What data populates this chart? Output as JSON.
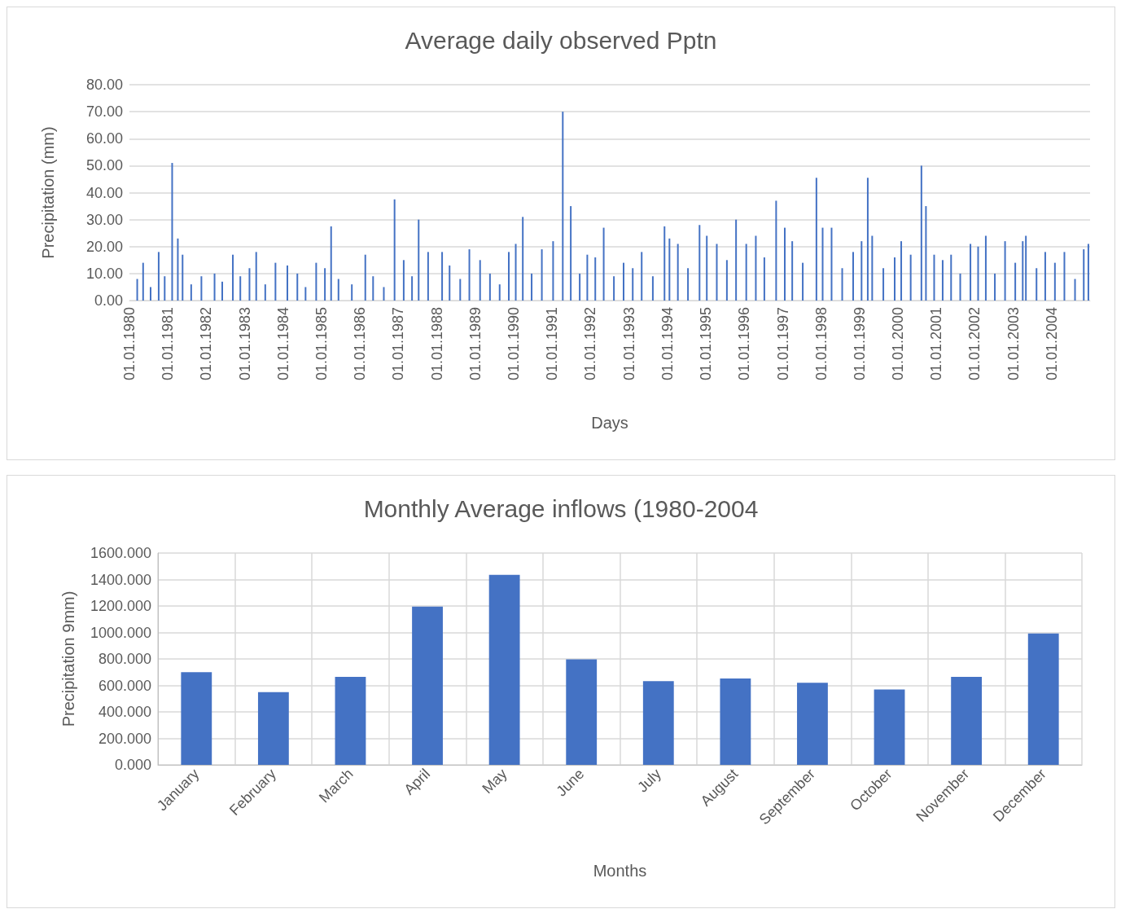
{
  "chart_data": [
    {
      "type": "bar",
      "title": "Average daily observed Pptn",
      "xlabel": "Days",
      "ylabel": "Precipitation (mm)",
      "grid": "y",
      "xlim": [
        "1980-01-01",
        "2004-12-31"
      ],
      "xticks": [
        {
          "value": "1980-01-01",
          "label": "01.01.1980"
        },
        {
          "value": "1981-01-01",
          "label": "01.01.1981"
        },
        {
          "value": "1982-01-01",
          "label": "01.01.1982"
        },
        {
          "value": "1983-01-01",
          "label": "01.01.1983"
        },
        {
          "value": "1984-01-01",
          "label": "01.01.1984"
        },
        {
          "value": "1985-01-01",
          "label": "01.01.1985"
        },
        {
          "value": "1986-01-01",
          "label": "01.01.1986"
        },
        {
          "value": "1987-01-01",
          "label": "01.01.1987"
        },
        {
          "value": "1988-01-01",
          "label": "01.01.1988"
        },
        {
          "value": "1989-01-01",
          "label": "01.01.1989"
        },
        {
          "value": "1990-01-01",
          "label": "01.01.1990"
        },
        {
          "value": "1991-01-01",
          "label": "01.01.1991"
        },
        {
          "value": "1992-01-01",
          "label": "01.01.1992"
        },
        {
          "value": "1993-01-01",
          "label": "01.01.1993"
        },
        {
          "value": "1994-01-01",
          "label": "01.01.1994"
        },
        {
          "value": "1995-01-01",
          "label": "01.01.1995"
        },
        {
          "value": "1996-01-01",
          "label": "01.01.1996"
        },
        {
          "value": "1997-01-01",
          "label": "01.01.1997"
        },
        {
          "value": "1998-01-01",
          "label": "01.01.1998"
        },
        {
          "value": "1999-01-01",
          "label": "01.01.1999"
        },
        {
          "value": "2000-01-01",
          "label": "01.01.2000"
        },
        {
          "value": "2001-01-01",
          "label": "01.01.2001"
        },
        {
          "value": "2002-01-01",
          "label": "01.01.2002"
        },
        {
          "value": "2003-01-01",
          "label": "01.01.2003"
        },
        {
          "value": "2004-01-01",
          "label": "01.01.2004"
        }
      ],
      "ylim": [
        0,
        80
      ],
      "yticks": [
        {
          "value": 0,
          "label": "0.00"
        },
        {
          "value": 10,
          "label": "10.00"
        },
        {
          "value": 20,
          "label": "20.00"
        },
        {
          "value": 30,
          "label": "30.00"
        },
        {
          "value": 40,
          "label": "40.00"
        },
        {
          "value": 50,
          "label": "50.00"
        },
        {
          "value": 60,
          "label": "60.00"
        },
        {
          "value": 70,
          "label": "70.00"
        },
        {
          "value": 80,
          "label": "80.00"
        }
      ],
      "x": [
        "1980-03-15",
        "1980-05-10",
        "1980-07-20",
        "1980-10-05",
        "1980-12-01",
        "1981-02-10",
        "1981-04-05",
        "1981-05-20",
        "1981-08-10",
        "1981-11-15",
        "1982-03-20",
        "1982-06-01",
        "1982-09-10",
        "1982-11-20",
        "1983-02-15",
        "1983-04-20",
        "1983-07-15",
        "1983-10-20",
        "1984-02-10",
        "1984-05-15",
        "1984-08-01",
        "1984-11-10",
        "1985-02-01",
        "1985-04-01",
        "1985-06-10",
        "1985-10-15",
        "1986-02-20",
        "1986-05-05",
        "1986-08-15",
        "1986-11-25",
        "1987-02-20",
        "1987-05-10",
        "1987-07-12",
        "1987-10-10",
        "1988-02-20",
        "1988-05-01",
        "1988-08-10",
        "1988-11-05",
        "1989-02-15",
        "1989-05-20",
        "1989-08-20",
        "1989-11-15",
        "1990-01-20",
        "1990-03-28",
        "1990-06-20",
        "1990-09-25",
        "1991-01-10",
        "1991-04-12",
        "1991-06-27",
        "1991-09-20",
        "1991-12-01",
        "1992-02-15",
        "1992-05-05",
        "1992-08-10",
        "1992-11-10",
        "1993-02-05",
        "1993-05-01",
        "1993-08-15",
        "1993-12-04",
        "1994-01-20",
        "1994-04-10",
        "1994-07-15",
        "1994-11-02",
        "1995-01-10",
        "1995-04-15",
        "1995-07-20",
        "1995-10-15",
        "1996-01-20",
        "1996-04-20",
        "1996-07-10",
        "1996-10-30",
        "1997-01-20",
        "1997-04-01",
        "1997-07-10",
        "1997-11-17",
        "1998-01-15",
        "1998-04-10",
        "1998-07-20",
        "1998-11-01",
        "1999-01-20",
        "1999-03-20",
        "1999-05-01",
        "1999-08-15",
        "1999-12-01",
        "2000-02-01",
        "2000-05-01",
        "2000-08-11",
        "2000-09-23",
        "2000-12-10",
        "2001-03-01",
        "2001-05-20",
        "2001-08-15",
        "2001-11-20",
        "2002-02-01",
        "2002-04-15",
        "2002-07-10",
        "2002-10-15",
        "2003-01-20",
        "2003-04-01",
        "2003-05-01",
        "2003-08-10",
        "2003-11-01",
        "2004-02-01",
        "2004-05-01",
        "2004-08-10",
        "2004-11-01",
        "2004-12-15"
      ],
      "series": [
        {
          "color": "#4472c4",
          "values": [
            8,
            14,
            5,
            18,
            9,
            51,
            23,
            17,
            6,
            9,
            10,
            7,
            17,
            9,
            12,
            18,
            6,
            14,
            13,
            10,
            5,
            14,
            12,
            27.5,
            8,
            6,
            17,
            9,
            5,
            37.5,
            15,
            9,
            30,
            18,
            18,
            13,
            8,
            19,
            15,
            10,
            6,
            18,
            21,
            31,
            10,
            19,
            22,
            70,
            35,
            10,
            17,
            16,
            27,
            9,
            14,
            12,
            18,
            9,
            27.5,
            23,
            21,
            12,
            28,
            24,
            21,
            15,
            30,
            21,
            24,
            16,
            37,
            27,
            22,
            14,
            45.5,
            27,
            27,
            12,
            18,
            22,
            45.5,
            24,
            12,
            16,
            22,
            17,
            50,
            35,
            17,
            15,
            17,
            10,
            21,
            20,
            24,
            10,
            22,
            14,
            22,
            24,
            12,
            18,
            14,
            18,
            8,
            19,
            21
          ]
        }
      ]
    },
    {
      "type": "bar",
      "title": "Monthly Average inflows (1980-2004",
      "xlabel": "Months",
      "ylabel": "Precipitation 9mm)",
      "grid": true,
      "categories": [
        "January",
        "February",
        "March",
        "April",
        "May",
        "June",
        "July",
        "August",
        "September",
        "October",
        "November",
        "December"
      ],
      "ylim": [
        0,
        1600
      ],
      "yticks": [
        {
          "value": 0,
          "label": "0.000"
        },
        {
          "value": 200,
          "label": "200.000"
        },
        {
          "value": 400,
          "label": "400.000"
        },
        {
          "value": 600,
          "label": "600.000"
        },
        {
          "value": 800,
          "label": "800.000"
        },
        {
          "value": 1000,
          "label": "1000.000"
        },
        {
          "value": 1200,
          "label": "1200.000"
        },
        {
          "value": 1400,
          "label": "1400.000"
        },
        {
          "value": 1600,
          "label": "1600.000"
        }
      ],
      "series": [
        {
          "color": "#4472c4",
          "values": [
            700,
            550,
            665,
            1195,
            1435,
            797,
            633,
            652,
            620,
            570,
            665,
            993
          ]
        }
      ]
    }
  ]
}
